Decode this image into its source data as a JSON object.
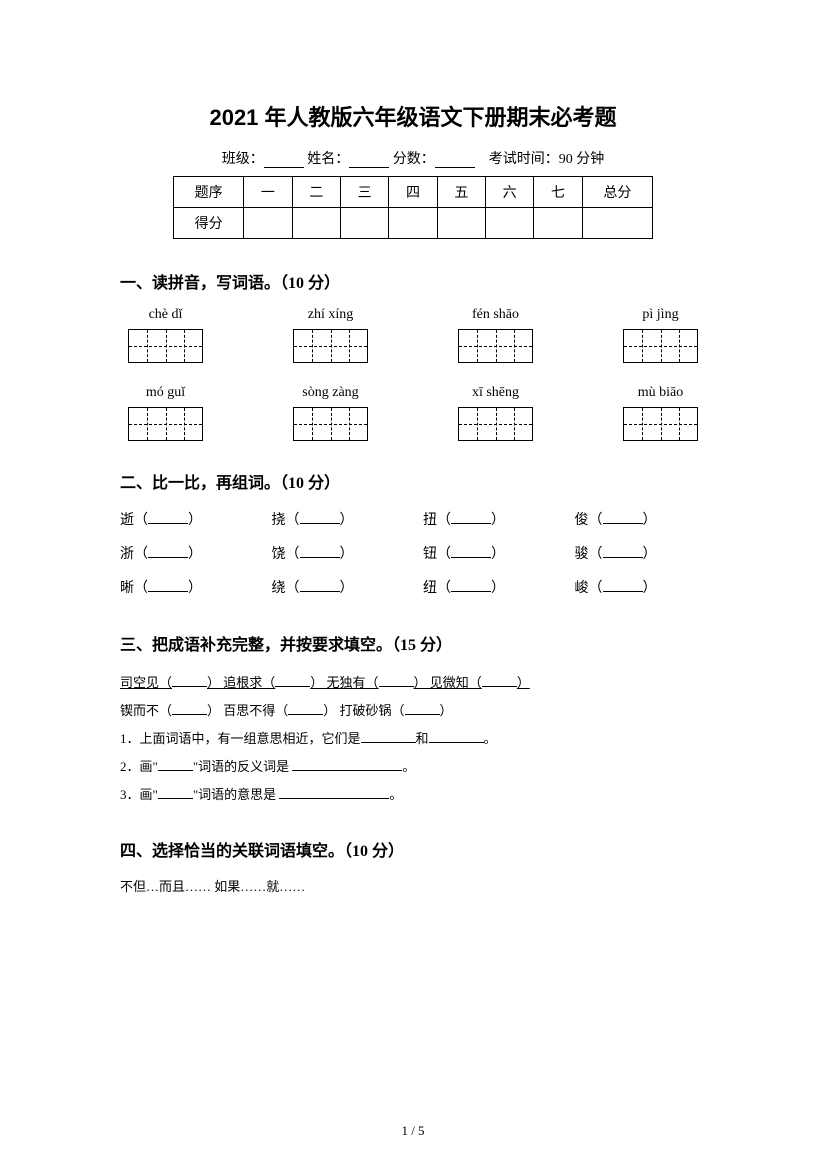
{
  "title": "2021 年人教版六年级语文下册期末必考题",
  "header": {
    "class_label": "班级：",
    "name_label": "姓名：",
    "score_label": "分数：",
    "exam_time": "考试时间：90 分钟"
  },
  "score_table": {
    "row1": [
      "题序",
      "一",
      "二",
      "三",
      "四",
      "五",
      "六",
      "七",
      "总分"
    ],
    "row2_label": "得分"
  },
  "section1": {
    "title": "一、读拼音，写词语。（10 分）",
    "pinyin_row1": [
      "chè dǐ",
      "zhí xíng",
      "fén shāo",
      "pì jìng"
    ],
    "pinyin_row2": [
      "mó guǐ",
      "sòng zàng",
      "xī shēng",
      "mù biāo"
    ]
  },
  "section2": {
    "title": "二、比一比，再组词。（10 分）",
    "items": [
      [
        "逝",
        "挠",
        "扭",
        "俊"
      ],
      [
        "浙",
        "饶",
        "钮",
        "骏"
      ],
      [
        "晰",
        "绕",
        "纽",
        "峻"
      ]
    ]
  },
  "section3": {
    "title": "三、把成语补充完整，并按要求填空。（15 分）",
    "line1_parts": [
      "司空见（",
      "）  追根求（",
      "）  无独有（",
      "）  见微知（",
      "）"
    ],
    "line2_parts": [
      "锲而不（",
      "）  百思不得（",
      "）  打破砂锅（",
      "）"
    ],
    "q1_prefix": "1．上面词语中，有一组意思相近，它们是",
    "q1_mid": "和",
    "q1_suffix": "。",
    "q2_prefix": "2．画\"",
    "q2_mid": "\"词语的反义词是 ",
    "q2_suffix": "。",
    "q3_prefix": "3．画\"",
    "q3_mid": "\"词语的意思是 ",
    "q3_suffix": "。"
  },
  "section4": {
    "title": "四、选择恰当的关联词语填空。（10 分）",
    "options": "不但…而且……    如果……就……"
  },
  "page_number": "1 / 5",
  "colors": {
    "text": "#000000",
    "background": "#ffffff",
    "border": "#000000"
  }
}
